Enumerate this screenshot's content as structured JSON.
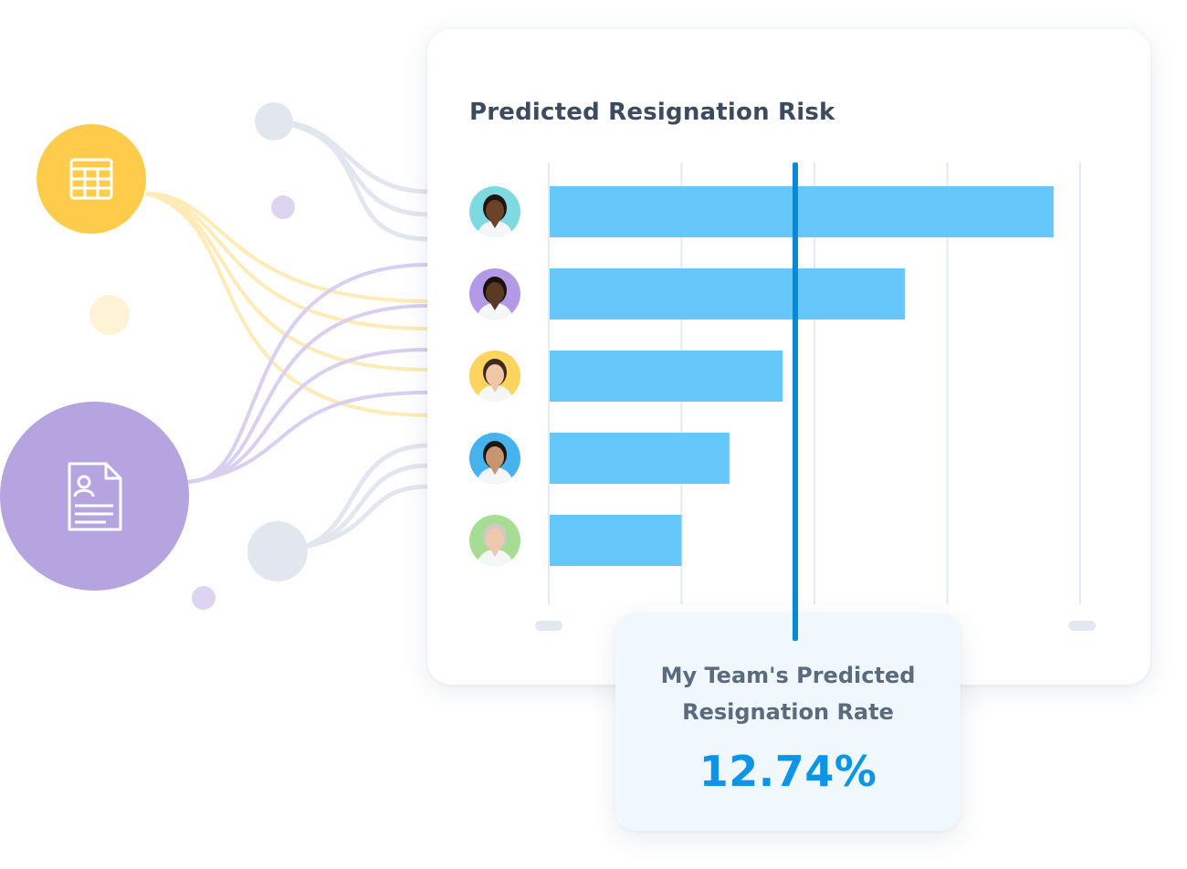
{
  "chart_data": {
    "type": "bar",
    "orientation": "horizontal",
    "title": "Predicted Resignation Risk",
    "categories": [
      "Employee 1",
      "Employee 2",
      "Employee 3",
      "Employee 4",
      "Employee 5"
    ],
    "values": [
      95,
      67,
      44,
      34,
      25
    ],
    "xlim": [
      0,
      100
    ],
    "grid": true,
    "reference_line": 47,
    "colors": {
      "bar": "#66c8fa",
      "reference": "#0a88d1",
      "grid": "#e6eaf0"
    }
  },
  "summary": {
    "label_line1": "My Team's Predicted",
    "label_line2": "Resignation Rate",
    "value": "12.74%"
  },
  "avatars": [
    {
      "icon": "person-avatar-icon",
      "bg": "#7fd9e0",
      "skin": "#6b4326",
      "hair": "#1e1410"
    },
    {
      "icon": "person-avatar-icon",
      "bg": "#b39ae6",
      "skin": "#5a3a23",
      "hair": "#1a120d"
    },
    {
      "icon": "person-avatar-icon",
      "bg": "#fcd45e",
      "skin": "#f0c7a6",
      "hair": "#3b2a1d"
    },
    {
      "icon": "person-avatar-icon",
      "bg": "#47b3ee",
      "skin": "#c99470",
      "hair": "#1c1410"
    },
    {
      "icon": "person-avatar-icon",
      "bg": "#a6dd92",
      "skin": "#efc9ae",
      "hair": "#cfcac2"
    }
  ],
  "sources": [
    {
      "icon": "spreadsheet-icon",
      "color": "#fecc4a"
    },
    {
      "icon": "resume-document-icon",
      "color": "#b6a4e0"
    }
  ]
}
